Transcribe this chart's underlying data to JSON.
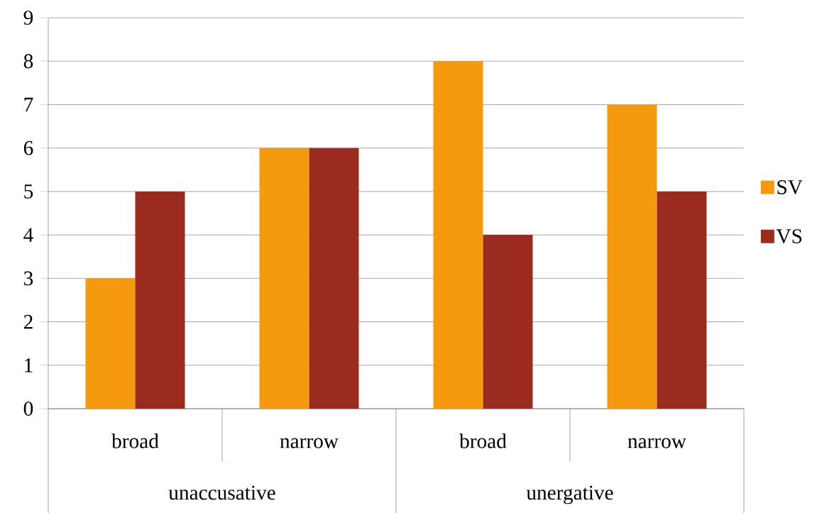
{
  "chart_data": {
    "type": "bar",
    "categories": [
      "broad",
      "narrow",
      "broad",
      "narrow"
    ],
    "series": [
      {
        "name": "SV",
        "color": "#f59a0e",
        "values": [
          3,
          6,
          8,
          7
        ]
      },
      {
        "name": "VS",
        "color": "#9c2b1f",
        "values": [
          5,
          6,
          4,
          5
        ]
      }
    ],
    "ylim": [
      0,
      9
    ],
    "yticks": [
      0,
      1,
      2,
      3,
      4,
      5,
      6,
      7,
      8,
      9
    ],
    "grid": "y",
    "legend": "right",
    "annotations": [
      "unaccusative",
      "unergative"
    ]
  }
}
